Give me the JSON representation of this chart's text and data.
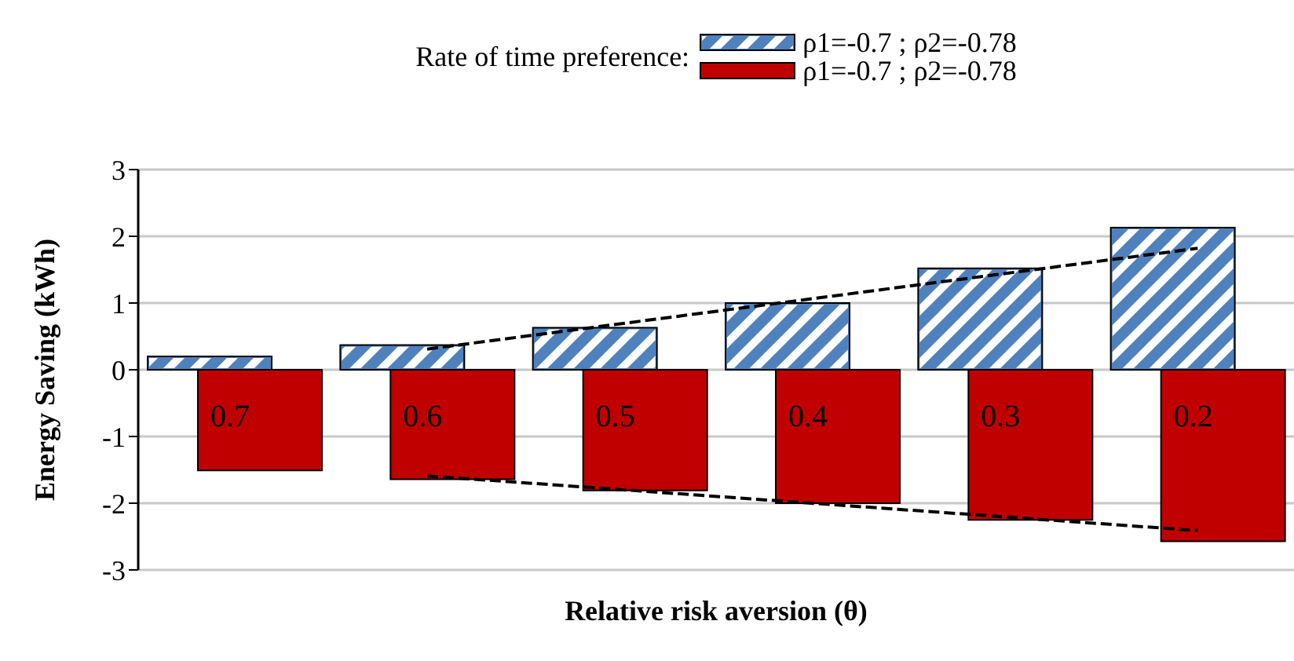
{
  "chart_data": {
    "type": "bar",
    "legend_title": "Rate of time preference:",
    "xlabel": "Relative risk aversion (θ)",
    "ylabel": "Energy Saving (kWh)",
    "categories": [
      "0.7",
      "0.6",
      "0.5",
      "0.4",
      "0.3",
      "0.2"
    ],
    "series": [
      {
        "name": "ρ1=-0.7 ; ρ2=-0.78",
        "color": "#4f81bd",
        "values": [
          0.2,
          0.37,
          0.63,
          1.0,
          1.52,
          2.13
        ]
      },
      {
        "name": "ρ1=-0.7 ; ρ2=-0.78",
        "color": "#c00000",
        "values": [
          -1.51,
          -1.64,
          -1.81,
          -2.0,
          -2.25,
          -2.57
        ]
      },
      {
        "type": "line",
        "color": "#000000",
        "line_style": "dashed",
        "values": [
          null,
          0.31,
          null,
          null,
          null,
          1.82
        ]
      },
      {
        "type": "line",
        "color": "#000000",
        "line_style": "dashed",
        "values": [
          null,
          -1.59,
          null,
          null,
          null,
          -2.41
        ]
      }
    ],
    "ylim": [
      -3,
      3
    ],
    "yticks": [
      -3,
      -2,
      -1,
      0,
      1,
      2,
      3
    ],
    "grid": "y",
    "legend": "top",
    "tick_labels": "y"
  }
}
